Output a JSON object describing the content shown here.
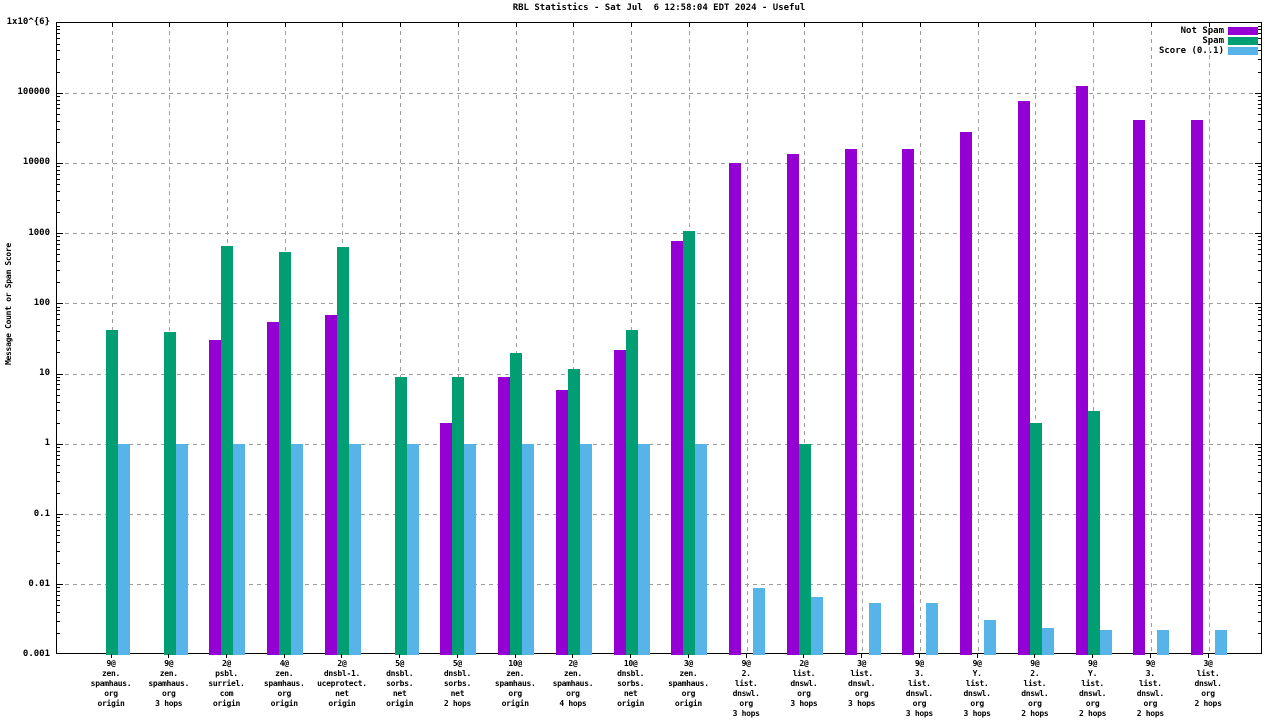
{
  "chart_data": {
    "type": "bar",
    "title": "RBL Statistics - Sat Jul  6 12:58:04 EDT 2024 - Useful",
    "ylabel": "Message Count or Spam Score",
    "xlabel": "",
    "yscale": "log10",
    "ylim": [
      0.001,
      1000000
    ],
    "grid": true,
    "legend_position": "top-right-inside",
    "ytick_labels": [
      "1x10^{6}",
      "100000",
      "10000",
      "1000",
      "100",
      "10",
      "1",
      "0.1",
      "0.01",
      "0.001"
    ],
    "colors": {
      "not_spam": "#9400d3",
      "spam": "#009e73",
      "score": "#56b4e9",
      "grid": "#9e9e9e",
      "axis": "#000000",
      "background": "#ffffff"
    },
    "categories": [
      "9@\nzen.\nspamhaus.\norg\norigin",
      "9@\nzen.\nspamhaus.\norg\n3 hops",
      "2@\npsbl.\nsurriel.\ncom\norigin",
      "4@\nzen.\nspamhaus.\norg\norigin",
      "2@\ndnsbl-1.\nuceprotect.\nnet\norigin",
      "5@\ndnsbl.\nsorbs.\nnet\norigin",
      "5@\ndnsbl.\nsorbs.\nnet\n2 hops",
      "10@\nzen.\nspamhaus.\norg\norigin",
      "2@\nzen.\nspamhaus.\norg\n4 hops",
      "10@\ndnsbl.\nsorbs.\nnet\norigin",
      "3@\nzen.\nspamhaus.\norg\norigin",
      "9@\n2.\nlist.\ndnswl.\norg\n3 hops",
      "2@\nlist.\ndnswl.\norg\n3 hops",
      "3@\nlist.\ndnswl.\norg\n3 hops",
      "9@\n3.\nlist.\ndnswl.\norg\n3 hops",
      "9@\nY.\nlist.\ndnswl.\norg\n3 hops",
      "9@\n2.\nlist.\ndnswl.\norg\n2 hops",
      "9@\nY.\nlist.\ndnswl.\norg\n2 hops",
      "9@\n3.\nlist.\ndnswl.\norg\n2 hops",
      "3@\nlist.\ndnswl.\norg\n2 hops"
    ],
    "series": [
      {
        "name": "Not Spam",
        "color_key": "not_spam",
        "values": [
          0,
          0,
          31,
          55,
          70,
          0,
          2,
          9,
          6,
          22,
          790,
          10000,
          13500,
          16000,
          16000,
          28000,
          78000,
          125000,
          41000,
          42000
        ]
      },
      {
        "name": "Spam",
        "color_key": "spam",
        "values": [
          43,
          40,
          670,
          550,
          650,
          9,
          9,
          20,
          12,
          43,
          1100,
          0,
          1,
          0,
          0,
          0,
          2,
          3,
          0,
          0
        ]
      },
      {
        "name": "Score (0..1)",
        "color_key": "score",
        "values": [
          1,
          1,
          1,
          1,
          1,
          1,
          1,
          1,
          1,
          1,
          1,
          0.009,
          0.0067,
          0.0055,
          0.0055,
          0.0032,
          0.0024,
          0.0023,
          0.0023,
          0.0023
        ]
      }
    ]
  }
}
